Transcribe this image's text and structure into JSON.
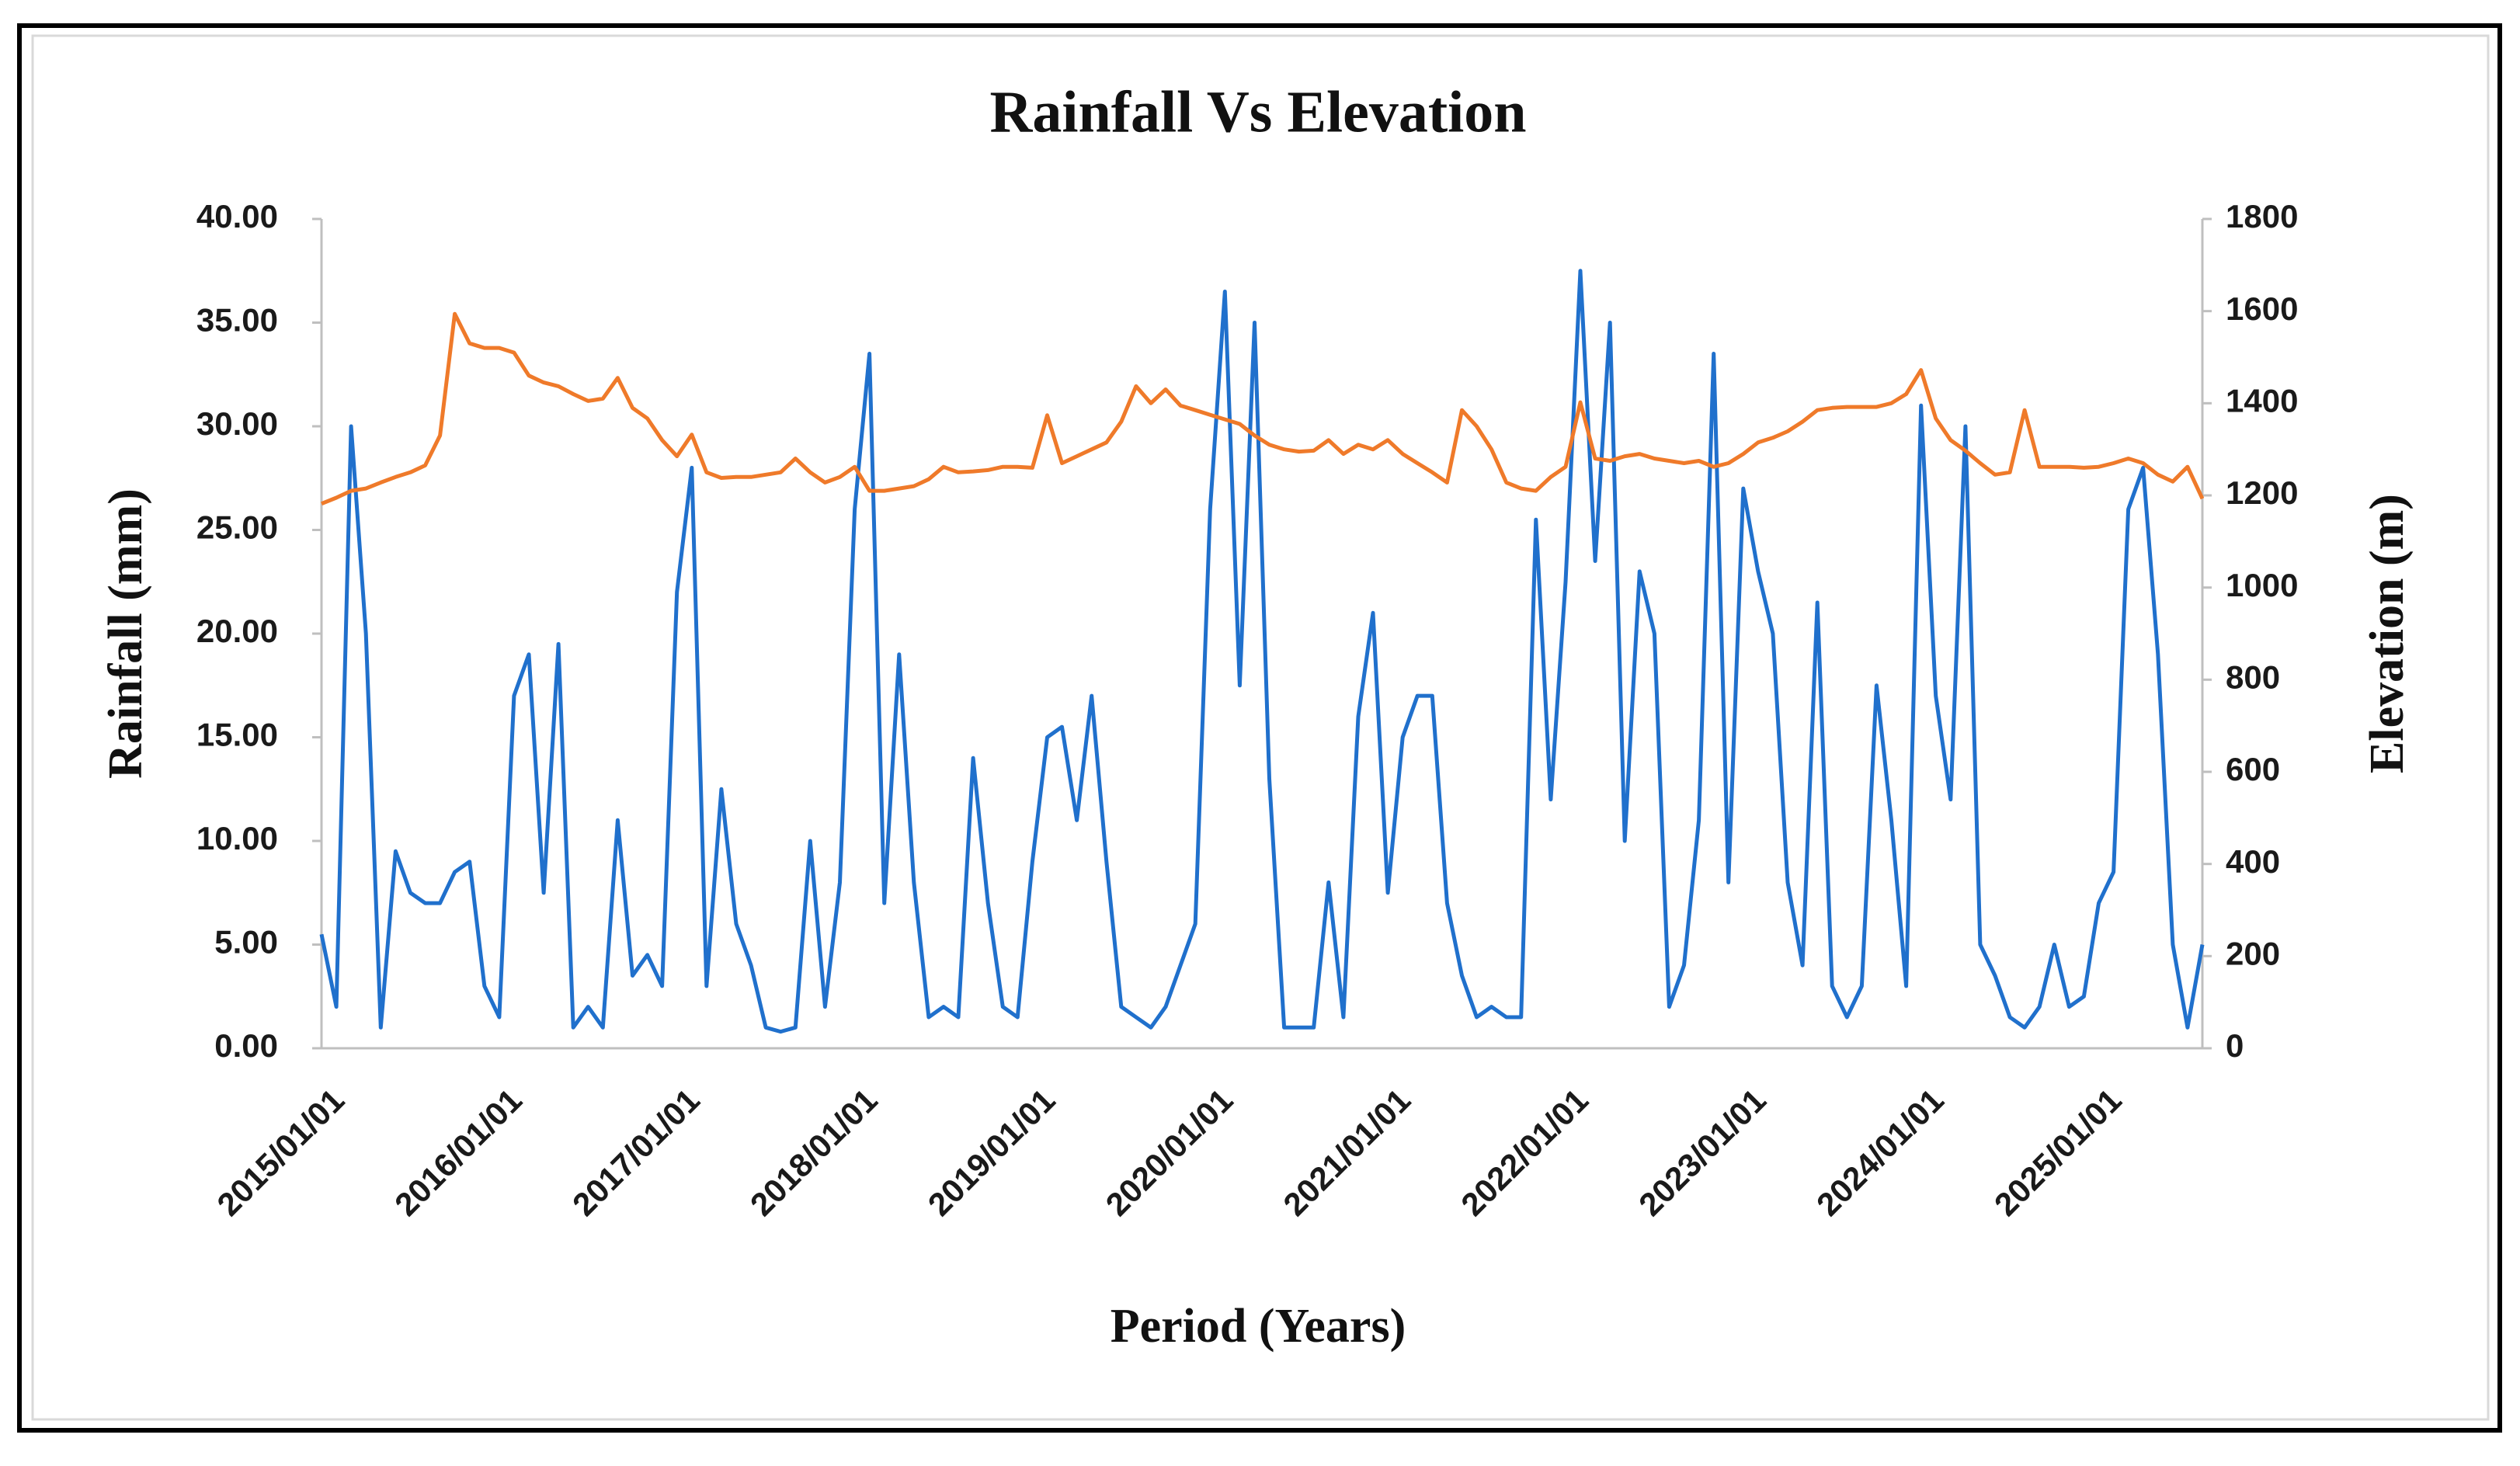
{
  "chart_data": {
    "type": "line",
    "title": "Rainfall Vs Elevation",
    "x_label": "Period (Years)",
    "y_label": "Rainfall (mm)",
    "y2_label": "Elevation (m)",
    "categories": [
      "2015/01/01",
      null,
      null,
      null,
      null,
      null,
      null,
      null,
      null,
      null,
      null,
      null,
      "2016/01/01",
      null,
      null,
      null,
      null,
      null,
      null,
      null,
      null,
      null,
      null,
      null,
      "2017/01/01",
      null,
      null,
      null,
      null,
      null,
      null,
      null,
      null,
      null,
      null,
      null,
      "2018/01/01",
      null,
      null,
      null,
      null,
      null,
      null,
      null,
      null,
      null,
      null,
      null,
      "2019/01/01",
      null,
      null,
      null,
      null,
      null,
      null,
      null,
      null,
      null,
      null,
      null,
      "2020/01/01",
      null,
      null,
      null,
      null,
      null,
      null,
      null,
      null,
      null,
      null,
      null,
      "2021/01/01",
      null,
      null,
      null,
      null,
      null,
      null,
      null,
      null,
      null,
      null,
      null,
      "2022/01/01",
      null,
      null,
      null,
      null,
      null,
      null,
      null,
      null,
      null,
      null,
      null,
      "2023/01/01",
      null,
      null,
      null,
      null,
      null,
      null,
      null,
      null,
      null,
      null,
      null,
      "2024/01/01",
      null,
      null,
      null,
      null,
      null,
      null,
      null,
      null,
      null,
      null,
      null,
      "2025/01/01",
      null,
      null,
      null,
      null,
      null,
      null,
      null
    ],
    "series": [
      {
        "name": "Rainfall",
        "color": "#2070cc",
        "values": [
          5.5,
          2,
          30,
          20,
          1,
          9.5,
          7.5,
          7,
          7,
          8.5,
          9,
          3,
          1.5,
          17,
          19,
          7.5,
          19.5,
          1,
          2,
          1,
          11,
          3.5,
          4.5,
          3,
          22,
          28,
          3,
          12.5,
          6,
          4,
          1,
          0.8,
          1,
          10,
          2,
          8,
          26,
          33.5,
          7,
          19,
          8,
          1.5,
          2,
          1.5,
          14,
          7,
          2,
          1.5,
          9,
          15,
          15.5,
          11,
          17,
          9,
          2,
          1.5,
          1,
          2,
          4,
          6,
          26,
          36.5,
          17.5,
          35,
          13,
          1,
          1,
          1,
          8,
          1.5,
          16,
          21,
          7.5,
          15,
          17,
          17,
          7,
          3.5,
          1.5,
          2,
          1.5,
          1.5,
          25.5,
          12,
          22.5,
          37.5,
          23.5,
          35,
          10,
          23,
          20,
          2,
          4,
          11,
          33.5,
          8,
          27,
          23,
          20,
          8,
          4,
          21.5,
          3,
          1.5,
          3,
          17.5,
          11,
          3,
          31,
          17,
          12,
          30,
          5,
          3.5,
          1.5,
          1,
          2,
          5,
          2,
          2.5,
          7,
          8.5,
          26,
          28,
          19,
          5,
          1,
          5
        ]
      },
      {
        "name": "Elevation",
        "color": "#ef7a2a",
        "axis": "y2",
        "values": [
          1182,
          1195,
          1210,
          1215,
          1228,
          1240,
          1250,
          1265,
          1330,
          1594,
          1530,
          1520,
          1520,
          1510,
          1460,
          1445,
          1437,
          1420,
          1405,
          1410,
          1455,
          1390,
          1367,
          1320,
          1285,
          1332,
          1250,
          1238,
          1240,
          1240,
          1245,
          1250,
          1280,
          1250,
          1228,
          1240,
          1262,
          1210,
          1210,
          1215,
          1220,
          1235,
          1262,
          1250,
          1252,
          1255,
          1262,
          1262,
          1260,
          1374,
          1270,
          1285,
          1300,
          1315,
          1360,
          1437,
          1400,
          1430,
          1395,
          1385,
          1375,
          1365,
          1355,
          1330,
          1310,
          1300,
          1295,
          1297,
          1320,
          1290,
          1310,
          1300,
          1320,
          1290,
          1270,
          1250,
          1228,
          1385,
          1350,
          1300,
          1228,
          1215,
          1210,
          1240,
          1262,
          1402,
          1280,
          1275,
          1285,
          1290,
          1280,
          1275,
          1270,
          1275,
          1262,
          1270,
          1290,
          1315,
          1325,
          1339,
          1360,
          1385,
          1390,
          1392,
          1392,
          1392,
          1400,
          1420,
          1472,
          1367,
          1320,
          1297,
          1270,
          1245,
          1250,
          1385,
          1262,
          1262,
          1262,
          1260,
          1262,
          1270,
          1280,
          1270,
          1245,
          1230,
          1262,
          1193
        ]
      }
    ],
    "ylim": [
      0,
      40
    ],
    "yticks": [
      {
        "value": 0,
        "label": "0.00"
      },
      {
        "value": 5,
        "label": "5.00"
      },
      {
        "value": 10,
        "label": "10.00"
      },
      {
        "value": 15,
        "label": "15.00"
      },
      {
        "value": 20,
        "label": "20.00"
      },
      {
        "value": 25,
        "label": "25.00"
      },
      {
        "value": 30,
        "label": "30.00"
      },
      {
        "value": 35,
        "label": "35.00"
      },
      {
        "value": 40,
        "label": "40.00"
      }
    ],
    "y2lim": [
      0,
      1800
    ],
    "y2ticks": [
      0,
      200,
      400,
      600,
      800,
      1000,
      1200,
      1400,
      1600,
      1800
    ],
    "grid": false
  }
}
